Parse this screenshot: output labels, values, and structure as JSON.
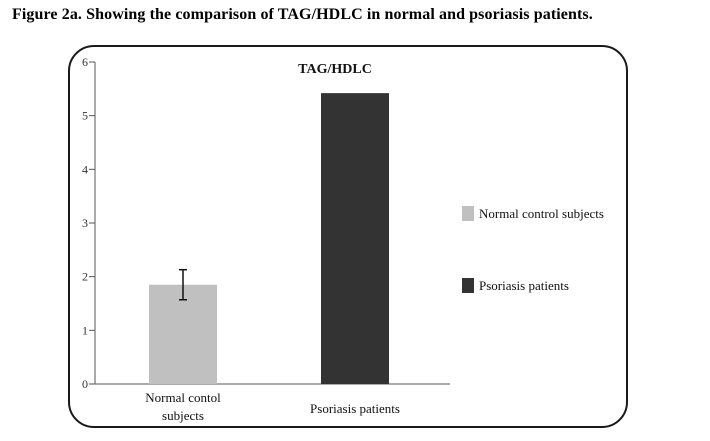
{
  "caption": "Figure 2a. Showing the comparison of TAG/HDLC in normal and psoriasis patients.",
  "chart_data": {
    "type": "bar",
    "title": "TAG/HDLC",
    "categories": [
      "Normal contol subjects",
      "Psoriasis patients"
    ],
    "category_lines": [
      [
        "Normal contol",
        "subjects"
      ],
      [
        "Psoriasis patients"
      ]
    ],
    "values": [
      1.85,
      5.42
    ],
    "error_bars": [
      0.28,
      null
    ],
    "colors": [
      "#c0c0c0",
      "#333333"
    ],
    "ylim": [
      0,
      6
    ],
    "yticks": [
      "0",
      "1",
      "2",
      "3",
      "4",
      "5",
      "6"
    ],
    "grid": false,
    "legend_position": "right",
    "legend": [
      {
        "label": "Normal control subjects",
        "color": "#c0c0c0"
      },
      {
        "label": "Psoriasis patients",
        "color": "#333333"
      }
    ]
  }
}
